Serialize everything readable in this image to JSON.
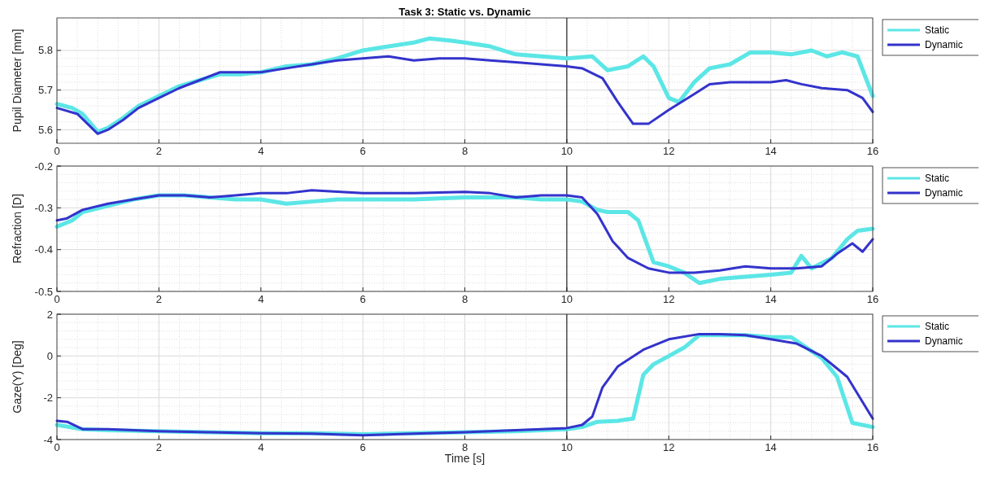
{
  "chart_data": [
    {
      "type": "line",
      "title": "Task 3: Static vs. Dynamic",
      "ylabel": "Pupil Diameter [mm]",
      "xlim": [
        0,
        16
      ],
      "xticks": [
        0,
        2,
        4,
        6,
        8,
        10,
        12,
        14,
        16
      ],
      "ylim": [
        5.566,
        5.882
      ],
      "yticks": [
        5.6,
        5.7,
        5.8
      ],
      "grid": true,
      "legend": "top right",
      "ref_lines": [
        {
          "axis": "x",
          "value": 10,
          "color": "#000000"
        }
      ],
      "series": [
        {
          "name": "Static",
          "color": "#5ce6e6",
          "x": [
            0,
            0.3,
            0.5,
            0.8,
            1.0,
            1.3,
            1.6,
            2.0,
            2.4,
            2.8,
            3.2,
            3.6,
            4.0,
            4.5,
            5.0,
            5.5,
            6.0,
            6.5,
            7.0,
            7.3,
            7.7,
            8.0,
            8.5,
            9.0,
            9.5,
            10,
            10.5,
            10.8,
            11.2,
            11.5,
            11.7,
            12.0,
            12.2,
            12.5,
            12.8,
            13.2,
            13.6,
            14.0,
            14.4,
            14.8,
            15.1,
            15.4,
            15.7,
            16
          ],
          "values": [
            5.665,
            5.655,
            5.64,
            5.595,
            5.605,
            5.63,
            5.66,
            5.685,
            5.71,
            5.725,
            5.74,
            5.74,
            5.745,
            5.76,
            5.765,
            5.78,
            5.8,
            5.81,
            5.82,
            5.83,
            5.825,
            5.82,
            5.81,
            5.79,
            5.785,
            5.78,
            5.785,
            5.75,
            5.76,
            5.785,
            5.76,
            5.68,
            5.67,
            5.72,
            5.755,
            5.765,
            5.795,
            5.795,
            5.79,
            5.8,
            5.785,
            5.795,
            5.785,
            5.685
          ]
        },
        {
          "name": "Dynamic",
          "color": "#3333cc",
          "x": [
            0,
            0.4,
            0.8,
            1.0,
            1.3,
            1.6,
            2.0,
            2.4,
            2.8,
            3.2,
            3.6,
            4.0,
            4.5,
            5.0,
            5.5,
            6.0,
            6.5,
            7.0,
            7.5,
            8.0,
            8.5,
            9.0,
            9.5,
            10,
            10.3,
            10.7,
            11.0,
            11.3,
            11.6,
            12.0,
            12.5,
            12.8,
            13.2,
            13.6,
            14.0,
            14.3,
            14.6,
            15.0,
            15.5,
            15.8,
            16
          ],
          "values": [
            5.655,
            5.64,
            5.59,
            5.6,
            5.625,
            5.655,
            5.68,
            5.705,
            5.725,
            5.745,
            5.745,
            5.745,
            5.755,
            5.765,
            5.775,
            5.78,
            5.785,
            5.775,
            5.78,
            5.78,
            5.775,
            5.77,
            5.765,
            5.76,
            5.755,
            5.73,
            5.67,
            5.615,
            5.615,
            5.65,
            5.69,
            5.715,
            5.72,
            5.72,
            5.72,
            5.725,
            5.715,
            5.705,
            5.7,
            5.68,
            5.645
          ]
        }
      ]
    },
    {
      "type": "line",
      "ylabel": "Refraction [D]",
      "xlim": [
        0,
        16
      ],
      "xticks": [
        0,
        2,
        4,
        6,
        8,
        10,
        12,
        14,
        16
      ],
      "ylim": [
        -0.5,
        -0.2
      ],
      "yticks": [
        -0.5,
        -0.4,
        -0.3,
        -0.2
      ],
      "grid": true,
      "legend": "top right",
      "ref_lines": [
        {
          "axis": "x",
          "value": 10,
          "color": "#000000"
        }
      ],
      "series": [
        {
          "name": "Static",
          "color": "#5ce6e6",
          "x": [
            0,
            0.3,
            0.5,
            1,
            1.5,
            2,
            2.5,
            3,
            3.5,
            4,
            4.5,
            5,
            5.5,
            6,
            7,
            8,
            9,
            9.5,
            10,
            10.3,
            10.6,
            10.8,
            11.2,
            11.4,
            11.7,
            12,
            12.3,
            12.6,
            13,
            13.5,
            14,
            14.4,
            14.6,
            14.8,
            15.2,
            15.5,
            15.7,
            16
          ],
          "values": [
            -0.345,
            -0.33,
            -0.31,
            -0.295,
            -0.28,
            -0.27,
            -0.27,
            -0.275,
            -0.28,
            -0.28,
            -0.29,
            -0.285,
            -0.28,
            -0.28,
            -0.28,
            -0.275,
            -0.275,
            -0.28,
            -0.28,
            -0.285,
            -0.305,
            -0.31,
            -0.31,
            -0.33,
            -0.43,
            -0.44,
            -0.455,
            -0.48,
            -0.47,
            -0.465,
            -0.46,
            -0.455,
            -0.415,
            -0.445,
            -0.42,
            -0.375,
            -0.355,
            -0.35
          ]
        },
        {
          "name": "Dynamic",
          "color": "#3333cc",
          "x": [
            0,
            0.2,
            0.5,
            1,
            1.5,
            2,
            2.5,
            3,
            3.5,
            4,
            4.5,
            5,
            6,
            7,
            8,
            8.5,
            9,
            9.5,
            10,
            10.3,
            10.6,
            10.9,
            11.2,
            11.6,
            12,
            12.5,
            13,
            13.5,
            14,
            14.5,
            15,
            15.3,
            15.6,
            15.8,
            16
          ],
          "values": [
            -0.33,
            -0.325,
            -0.305,
            -0.29,
            -0.28,
            -0.27,
            -0.27,
            -0.275,
            -0.27,
            -0.265,
            -0.265,
            -0.258,
            -0.265,
            -0.265,
            -0.262,
            -0.265,
            -0.275,
            -0.27,
            -0.27,
            -0.275,
            -0.315,
            -0.38,
            -0.42,
            -0.445,
            -0.455,
            -0.455,
            -0.45,
            -0.44,
            -0.445,
            -0.445,
            -0.44,
            -0.41,
            -0.385,
            -0.405,
            -0.375
          ]
        }
      ]
    },
    {
      "type": "line",
      "ylabel": "Gaze(Y) [Deg]",
      "xlabel": "Time [s]",
      "xlim": [
        0,
        16
      ],
      "xticks": [
        0,
        2,
        4,
        6,
        8,
        10,
        12,
        14,
        16
      ],
      "ylim": [
        -4,
        2
      ],
      "yticks": [
        -4,
        -2,
        0,
        2
      ],
      "grid": true,
      "legend": "top right",
      "ref_lines": [
        {
          "axis": "x",
          "value": 10,
          "color": "#000000"
        }
      ],
      "series": [
        {
          "name": "Static",
          "color": "#5ce6e6",
          "x": [
            0,
            0.5,
            1,
            2,
            3,
            4,
            5,
            6,
            7,
            8,
            9,
            10,
            10.3,
            10.6,
            11,
            11.3,
            11.5,
            11.7,
            12,
            12.3,
            12.6,
            13,
            13.5,
            14,
            14.4,
            14.7,
            15,
            15.3,
            15.6,
            16
          ],
          "values": [
            -3.3,
            -3.5,
            -3.55,
            -3.6,
            -3.65,
            -3.7,
            -3.7,
            -3.75,
            -3.7,
            -3.65,
            -3.6,
            -3.5,
            -3.4,
            -3.15,
            -3.1,
            -3.0,
            -0.9,
            -0.4,
            0,
            0.4,
            1.0,
            1.0,
            1.0,
            0.9,
            0.9,
            0.4,
            -0.1,
            -1.0,
            -3.2,
            -3.4
          ]
        },
        {
          "name": "Dynamic",
          "color": "#3333cc",
          "x": [
            0,
            0.2,
            0.5,
            1,
            2,
            3,
            4,
            5,
            6,
            7,
            8,
            9,
            10,
            10.3,
            10.5,
            10.7,
            11,
            11.5,
            12,
            12.6,
            13,
            13.5,
            14,
            14.5,
            15,
            15.5,
            16
          ],
          "values": [
            -3.1,
            -3.15,
            -3.5,
            -3.5,
            -3.6,
            -3.65,
            -3.7,
            -3.72,
            -3.8,
            -3.72,
            -3.65,
            -3.55,
            -3.45,
            -3.3,
            -2.9,
            -1.5,
            -0.5,
            0.3,
            0.8,
            1.05,
            1.05,
            1.0,
            0.8,
            0.6,
            0.0,
            -1.0,
            -3.0
          ]
        }
      ]
    }
  ]
}
